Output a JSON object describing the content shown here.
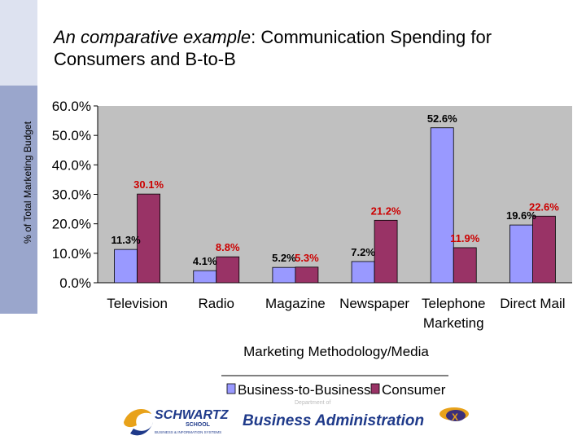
{
  "slide": {
    "title_em": "An comparative example",
    "title_rest": ": Communication Spending for Consumers and B-to-B"
  },
  "colors": {
    "business": "#9999ff",
    "consumer": "#993366",
    "plot_bg": "#c0c0c0",
    "label_business": "#000000",
    "label_consumer": "#cc0000",
    "sidebar": "#9aa6cc"
  },
  "chart_data": {
    "type": "bar",
    "title": "",
    "xlabel": "Marketing Methodology/Media",
    "ylabel": "% of Total Marketing Budget",
    "ylim": [
      0,
      60
    ],
    "yticks": [
      "0.0%",
      "10.0%",
      "20.0%",
      "30.0%",
      "40.0%",
      "50.0%",
      "60.0%"
    ],
    "categories": [
      "Television",
      "Radio",
      "Magazine",
      "Newspaper",
      "Telephone Marketing",
      "Direct Mail"
    ],
    "series": [
      {
        "name": "Business-to-Business",
        "values": [
          11.3,
          4.1,
          5.2,
          7.2,
          52.6,
          19.6
        ],
        "labels": [
          "11.3%",
          "4.1%",
          "5.2%",
          "7.2%",
          "52.6%",
          "19.6%"
        ]
      },
      {
        "name": "Consumer",
        "values": [
          30.1,
          8.8,
          5.3,
          21.2,
          11.9,
          22.6
        ],
        "labels": [
          "30.1%",
          "8.8%",
          "5.3%",
          "21.2%",
          "11.9%",
          "22.6%"
        ]
      }
    ],
    "legend": "bottom-center",
    "grid": false
  },
  "footer": {
    "logo_left_line1": "SCHWARTZ",
    "logo_left_line2": "SCHOOL",
    "logo_left_line3": "BUSINESS & INFORMATION SYSTEMS",
    "logo_main": "Business Administration",
    "logo_right": "X",
    "logo_small_above": "Department of"
  }
}
